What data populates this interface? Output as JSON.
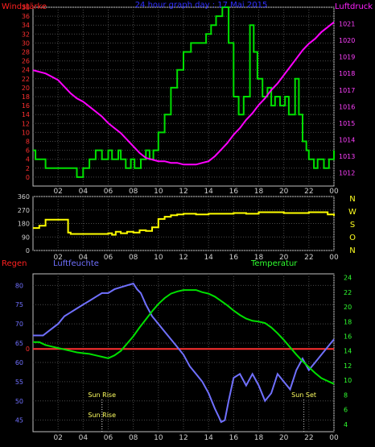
{
  "chart_data": [
    {
      "type": "line",
      "title": "24 hour graph day : 17 Mai 2015",
      "left_axis_label": "Windstärke",
      "right_axis_label": "Luftdruck",
      "x_ticks": [
        "02",
        "04",
        "06",
        "08",
        "10",
        "12",
        "14",
        "16",
        "18",
        "20",
        "22",
        "00"
      ],
      "left_ticks": [
        "0",
        "2",
        "4",
        "6",
        "8",
        "10",
        "12",
        "14",
        "16",
        "18",
        "20",
        "22",
        "24",
        "26",
        "28",
        "30",
        "32",
        "34",
        "36",
        "38"
      ],
      "left_range": [
        0,
        38
      ],
      "right_ticks": [
        "1012",
        "1013",
        "1014",
        "1015",
        "1016",
        "1017",
        "1018",
        "1019",
        "1020",
        "1021"
      ],
      "right_range": [
        1011.2,
        1022
      ],
      "grid": true,
      "series": [
        {
          "name": "Windstärke",
          "color": "#00e000",
          "step": true,
          "x": [
            0,
            0.2,
            1,
            1.5,
            3.5,
            4,
            4.5,
            5,
            5.5,
            6,
            6.3,
            6.8,
            7,
            7.4,
            7.8,
            8.1,
            8.6,
            9,
            9.3,
            9.6,
            10,
            10.5,
            11,
            11.5,
            12,
            12.6,
            13.8,
            14.2,
            14.6,
            15.1,
            15.6,
            16,
            16.4,
            16.8,
            17.3,
            17.6,
            17.9,
            18.3,
            18.7,
            19,
            19.3,
            19.7,
            20.1,
            20.4,
            20.9,
            21.2,
            21.5,
            21.8,
            22,
            22.4,
            22.7,
            23.2,
            23.6,
            24
          ],
          "y": [
            6,
            4,
            2,
            2,
            0,
            2,
            4,
            6,
            4,
            6,
            4,
            6,
            4,
            2,
            4,
            2,
            4,
            6,
            4,
            6,
            10,
            14,
            20,
            24,
            28,
            30,
            32,
            34,
            36,
            38,
            30,
            18,
            14,
            18,
            34,
            28,
            22,
            18,
            20,
            16,
            18,
            16,
            18,
            14,
            22,
            14,
            8,
            6,
            4,
            2,
            4,
            2,
            4,
            6
          ]
        },
        {
          "name": "Luftdruck",
          "color": "#ff00ff",
          "x": [
            0,
            0.5,
            1,
            1.5,
            2,
            2.5,
            3,
            3.5,
            4,
            4.5,
            5,
            5.5,
            6,
            6.5,
            7,
            7.5,
            8,
            8.5,
            9,
            9.5,
            10,
            10.5,
            11,
            11.5,
            12,
            12.5,
            13,
            13.5,
            14,
            14.5,
            15,
            15.5,
            16,
            16.5,
            17,
            17.5,
            18,
            18.5,
            19,
            19.5,
            20,
            20.5,
            21,
            21.5,
            22,
            22.5,
            23,
            23.5,
            24
          ],
          "y": [
            1018.2,
            1018.1,
            1018,
            1017.8,
            1017.6,
            1017.2,
            1016.8,
            1016.5,
            1016.3,
            1016,
            1015.7,
            1015.4,
            1015,
            1014.7,
            1014.4,
            1014,
            1013.6,
            1013.2,
            1012.9,
            1012.8,
            1012.7,
            1012.7,
            1012.6,
            1012.6,
            1012.5,
            1012.5,
            1012.5,
            1012.6,
            1012.7,
            1013,
            1013.4,
            1013.8,
            1014.3,
            1014.7,
            1015.2,
            1015.6,
            1016.1,
            1016.5,
            1017,
            1017.4,
            1017.9,
            1018.4,
            1018.9,
            1019.4,
            1019.8,
            1020.1,
            1020.5,
            1020.8,
            1021.1
          ]
        }
      ]
    },
    {
      "type": "line",
      "left_axis_label": "",
      "x_ticks": [
        "02",
        "04",
        "06",
        "08",
        "10",
        "12",
        "14",
        "16",
        "18",
        "20",
        "22",
        "00"
      ],
      "left_ticks": [
        "0",
        "90",
        "180",
        "270",
        "360"
      ],
      "left_range": [
        0,
        360
      ],
      "right_labels": [
        "N",
        "W",
        "S",
        "O",
        "N"
      ],
      "grid": true,
      "series": [
        {
          "name": "Windrichtung",
          "color": "#ffff00",
          "step": true,
          "x": [
            0,
            0.5,
            1,
            2.5,
            2.8,
            3,
            4,
            5,
            6,
            6.3,
            6.6,
            7,
            7.5,
            8,
            8.5,
            9,
            9.5,
            10,
            10.5,
            11,
            11.5,
            12,
            13,
            14,
            15,
            16,
            17,
            18,
            19,
            20,
            21,
            22,
            22.5,
            23,
            23.5,
            24
          ],
          "y": [
            150,
            165,
            205,
            205,
            120,
            110,
            110,
            110,
            115,
            105,
            125,
            115,
            125,
            120,
            135,
            130,
            155,
            210,
            225,
            235,
            240,
            245,
            240,
            245,
            245,
            250,
            245,
            255,
            255,
            250,
            250,
            255,
            255,
            255,
            240,
            230
          ]
        }
      ]
    },
    {
      "type": "line",
      "left_axis_label": "Regen",
      "mid_axis_label": "Luftfeuchte",
      "right_axis_label": "Temperatur",
      "x_ticks": [
        "02",
        "04",
        "06",
        "08",
        "10",
        "12",
        "14",
        "16",
        "18",
        "20",
        "22",
        "00"
      ],
      "humidity_ticks": [
        "45",
        "50",
        "55",
        "60",
        "65",
        "70",
        "75",
        "80"
      ],
      "humidity_range": [
        42,
        83
      ],
      "temperature_ticks": [
        "4",
        "6",
        "8",
        "10",
        "12",
        "14",
        "16",
        "18",
        "20",
        "22",
        "24"
      ],
      "temperature_range": [
        3,
        24.5
      ],
      "rain_ticks": [
        "0"
      ],
      "rain_zero_humidity": 63.5,
      "grid": true,
      "annotations": [
        {
          "text": "Sun Rise",
          "x": 5.5
        },
        {
          "text": "Sun Rise",
          "x": 5.5
        },
        {
          "text": "Sun Set",
          "x": 21.6
        }
      ],
      "series": [
        {
          "name": "Regen",
          "color": "#ff3030",
          "x": [
            0,
            24
          ],
          "y": [
            0,
            0
          ]
        },
        {
          "name": "Luftfeuchte",
          "color": "#7070ff",
          "x": [
            0,
            0.8,
            1.2,
            2,
            2.5,
            3,
            3.5,
            4,
            4.5,
            5,
            5.5,
            6,
            6.5,
            7,
            7.5,
            8,
            8.3,
            8.6,
            9,
            9.5,
            10,
            10.5,
            11,
            11.5,
            12,
            12.5,
            13,
            13.5,
            14,
            14.5,
            14.8,
            15,
            15.3,
            15.6,
            16,
            16.5,
            17,
            17.5,
            18,
            18.5,
            19,
            19.5,
            20,
            20.5,
            21,
            21.5,
            22,
            22.5,
            23,
            23.5,
            24
          ],
          "y": [
            67,
            67,
            68,
            70,
            72,
            73,
            74,
            75,
            76,
            77,
            78,
            78,
            79,
            79.5,
            80,
            80.5,
            79,
            78,
            75,
            72,
            70,
            68,
            66,
            64,
            62,
            59,
            57,
            55,
            52,
            48,
            46,
            44.5,
            45,
            50,
            56,
            57,
            54,
            57,
            54,
            50,
            52,
            57,
            55,
            53,
            58,
            61,
            58,
            60,
            62,
            64,
            66
          ]
        },
        {
          "name": "Temperatur",
          "color": "#00e000",
          "x": [
            0,
            0.5,
            1,
            1.5,
            2,
            2.5,
            3,
            3.5,
            4,
            4.5,
            5,
            5.5,
            6,
            6.5,
            7,
            7.5,
            8,
            8.5,
            9,
            9.5,
            10,
            10.5,
            11,
            11.5,
            12,
            12.5,
            13,
            13.5,
            14,
            14.5,
            15,
            15.5,
            16,
            16.5,
            17,
            17.5,
            18,
            18.5,
            19,
            19.5,
            20,
            20.5,
            21,
            21.5,
            22,
            22.5,
            23,
            23.5,
            24
          ],
          "y": [
            15.2,
            15.2,
            14.8,
            14.6,
            14.4,
            14.2,
            14,
            13.8,
            13.7,
            13.6,
            13.4,
            13.2,
            13,
            13.4,
            14,
            15,
            16,
            17.2,
            18.3,
            19.4,
            20.4,
            21.2,
            21.8,
            22.1,
            22.3,
            22.3,
            22.3,
            22,
            21.8,
            21.4,
            20.8,
            20.2,
            19.5,
            18.9,
            18.4,
            18.1,
            18,
            17.8,
            17.2,
            16.4,
            15.5,
            14.5,
            13.5,
            12.6,
            11.8,
            11,
            10.3,
            9.9,
            9.5
          ]
        }
      ]
    }
  ]
}
